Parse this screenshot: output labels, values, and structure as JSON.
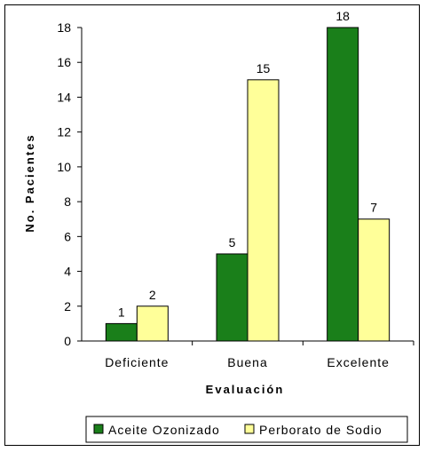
{
  "chart_data": {
    "type": "bar",
    "categories": [
      "Deficiente",
      "Buena",
      "Excelente"
    ],
    "series": [
      {
        "name": "Aceite Ozonizado",
        "values": [
          1,
          5,
          18
        ],
        "color": "#1a7f1a"
      },
      {
        "name": "Perborato de Sodio",
        "values": [
          2,
          15,
          7
        ],
        "color": "#ffff99"
      }
    ],
    "xlabel": "Evaluación",
    "ylabel": "No. Pacientes",
    "ylim": [
      0,
      18
    ],
    "yticks": [
      0,
      2,
      4,
      6,
      8,
      10,
      12,
      14,
      16,
      18
    ],
    "grid": false,
    "legend_position": "bottom"
  }
}
